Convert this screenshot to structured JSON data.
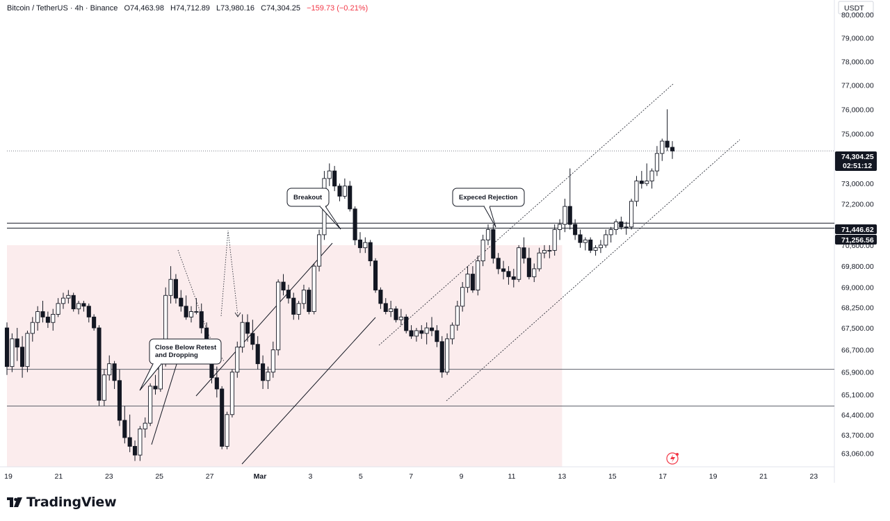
{
  "header": {
    "symbol": "Bitcoin / TetherUS",
    "interval": "4h",
    "exchange": "Binance",
    "open": "O74,463.98",
    "high": "H74,712.89",
    "low": "L73,980.16",
    "close": "C74,304.25",
    "change": "−159.73 (−0.21%)",
    "change_color": "#f23645"
  },
  "axis": {
    "currency": "USDT",
    "price_ticks": [
      "80,000.00",
      "79,000.00",
      "78,000.00",
      "77,000.00",
      "76,000.00",
      "75,000.00",
      "73,000.00",
      "72,200.00",
      "70,600.00",
      "69,800.00",
      "69,000.00",
      "68,250.00",
      "67,500.00",
      "66,700.00",
      "65,900.00",
      "65,100.00",
      "64,400.00",
      "63,700.00",
      "63,060.00"
    ],
    "time_ticks": [
      "19",
      "21",
      "23",
      "25",
      "27",
      "Mar",
      "3",
      "5",
      "7",
      "9",
      "11",
      "13",
      "15",
      "17",
      "19",
      "21",
      "23"
    ]
  },
  "price_tags": {
    "current_price": "74,304.25",
    "countdown": "02:51:12",
    "level_high": "71,446.62",
    "level_low": "71,256.56"
  },
  "annotations": {
    "breakout": "Breakout",
    "expected_rejection": "Expeced Rejection",
    "close_below_line1": "Close Below Retest",
    "close_below_line2": "and Dropping"
  },
  "brand": {
    "name": "TradingView"
  },
  "colors": {
    "candle_body": "#131722",
    "up_body": "#ffffff",
    "zone_fill": "#fbeced",
    "tag_bg": "#131722",
    "accent": "#f23645"
  },
  "chart_data": {
    "type": "candlestick",
    "symbol": "Bitcoin / TetherUS",
    "interval": "4h",
    "x_axis": [
      "19",
      "21",
      "23",
      "25",
      "27",
      "Mar",
      "3",
      "5",
      "7",
      "9",
      "11",
      "13",
      "15",
      "17",
      "19",
      "21",
      "23"
    ],
    "ylim": [
      62600,
      80400
    ],
    "y_scale": "log",
    "horizontal_levels": [
      71446.62,
      71256.56,
      66000,
      64700
    ],
    "current_price": 74304.25,
    "support_zone": {
      "from": "19",
      "to": "13",
      "low": 62600,
      "high": 70600
    },
    "candles": [
      [
        67500,
        67700,
        65800,
        66100
      ],
      [
        66100,
        67300,
        65900,
        67100
      ],
      [
        67100,
        67500,
        66300,
        66800
      ],
      [
        66800,
        67200,
        65700,
        66100
      ],
      [
        66100,
        67400,
        65900,
        67300
      ],
      [
        67300,
        67900,
        67000,
        67700
      ],
      [
        67700,
        68300,
        67400,
        68100
      ],
      [
        68100,
        68500,
        67700,
        67900
      ],
      [
        67900,
        68100,
        67500,
        67700
      ],
      [
        67700,
        68200,
        67400,
        68000
      ],
      [
        68000,
        68600,
        67900,
        68400
      ],
      [
        68400,
        68800,
        68200,
        68600
      ],
      [
        68600,
        68900,
        68400,
        68700
      ],
      [
        68700,
        68800,
        68100,
        68200
      ],
      [
        68200,
        68500,
        68000,
        68400
      ],
      [
        68400,
        68500,
        68100,
        68300
      ],
      [
        68300,
        68400,
        67700,
        67900
      ],
      [
        67900,
        68000,
        67400,
        67500
      ],
      [
        67500,
        67600,
        64700,
        64900
      ],
      [
        64900,
        66000,
        64700,
        65800
      ],
      [
        65800,
        66500,
        65600,
        66200
      ],
      [
        66200,
        66300,
        65300,
        65600
      ],
      [
        65600,
        66000,
        64000,
        64200
      ],
      [
        64200,
        64700,
        63400,
        63600
      ],
      [
        63600,
        64400,
        63100,
        63300
      ],
      [
        63300,
        63500,
        62800,
        63000
      ],
      [
        63000,
        64000,
        62800,
        63900
      ],
      [
        63900,
        64300,
        63600,
        64100
      ],
      [
        64100,
        65500,
        64000,
        65400
      ],
      [
        65400,
        65800,
        65100,
        65300
      ],
      [
        65300,
        66400,
        65200,
        66200
      ],
      [
        66200,
        69000,
        66100,
        68700
      ],
      [
        68700,
        69800,
        68400,
        69300
      ],
      [
        69300,
        69500,
        68400,
        68600
      ],
      [
        68600,
        68900,
        68100,
        68300
      ],
      [
        68300,
        68700,
        67800,
        67900
      ],
      [
        67900,
        68300,
        67700,
        68100
      ],
      [
        68100,
        68600,
        68000,
        68100
      ],
      [
        68100,
        68400,
        67300,
        67500
      ],
      [
        67500,
        67700,
        66300,
        66500
      ],
      [
        66500,
        66800,
        65500,
        65700
      ],
      [
        65700,
        66100,
        65000,
        65300
      ],
      [
        65300,
        65400,
        63200,
        63300
      ],
      [
        63300,
        64500,
        63200,
        64400
      ],
      [
        64400,
        66000,
        64300,
        65900
      ],
      [
        65900,
        67000,
        65700,
        66800
      ],
      [
        66800,
        68000,
        66600,
        67700
      ],
      [
        67700,
        68000,
        67000,
        67300
      ],
      [
        67300,
        67800,
        66700,
        66900
      ],
      [
        66900,
        67200,
        66000,
        66200
      ],
      [
        66200,
        66500,
        65300,
        65600
      ],
      [
        65600,
        66100,
        65300,
        65900
      ],
      [
        65900,
        67000,
        65700,
        66700
      ],
      [
        66700,
        69300,
        66500,
        69200
      ],
      [
        69200,
        69500,
        68700,
        68900
      ],
      [
        68900,
        69100,
        68400,
        68600
      ],
      [
        68600,
        68800,
        67800,
        68000
      ],
      [
        68000,
        68500,
        67800,
        68400
      ],
      [
        68400,
        69100,
        68200,
        68900
      ],
      [
        68900,
        69000,
        68000,
        68100
      ],
      [
        68100,
        69900,
        68000,
        69800
      ],
      [
        69800,
        71200,
        69600,
        71000
      ],
      [
        71000,
        73500,
        70800,
        73200
      ],
      [
        73200,
        73800,
        72900,
        73500
      ],
      [
        73500,
        73700,
        72700,
        72900
      ],
      [
        72900,
        73000,
        72300,
        72500
      ],
      [
        72500,
        73200,
        72400,
        72900
      ],
      [
        72900,
        73100,
        71900,
        72000
      ],
      [
        72000,
        72100,
        70600,
        70800
      ],
      [
        70800,
        71100,
        70300,
        70500
      ],
      [
        70500,
        70900,
        70300,
        70700
      ],
      [
        70700,
        70800,
        69800,
        70000
      ],
      [
        70000,
        70100,
        68800,
        68900
      ],
      [
        68900,
        69000,
        68200,
        68400
      ],
      [
        68400,
        68600,
        68000,
        68100
      ],
      [
        68100,
        68500,
        67900,
        68200
      ],
      [
        68200,
        68300,
        67700,
        67800
      ],
      [
        67800,
        68200,
        67600,
        67900
      ],
      [
        67900,
        68000,
        67300,
        67400
      ],
      [
        67400,
        67600,
        67100,
        67200
      ],
      [
        67200,
        67500,
        67000,
        67400
      ],
      [
        67400,
        67600,
        67100,
        67300
      ],
      [
        67300,
        67700,
        66900,
        67500
      ],
      [
        67500,
        67900,
        67200,
        67400
      ],
      [
        67400,
        67600,
        66800,
        67000
      ],
      [
        67000,
        67200,
        65700,
        65900
      ],
      [
        65900,
        67300,
        65800,
        67100
      ],
      [
        67100,
        67700,
        66900,
        67600
      ],
      [
        67600,
        68500,
        67400,
        68300
      ],
      [
        68300,
        69200,
        68100,
        69000
      ],
      [
        69000,
        69800,
        68800,
        69500
      ],
      [
        69500,
        69800,
        68800,
        68900
      ],
      [
        68900,
        70200,
        68700,
        70000
      ],
      [
        70000,
        71000,
        69800,
        70800
      ],
      [
        70800,
        71400,
        70600,
        71200
      ],
      [
        71200,
        71400,
        69900,
        70100
      ],
      [
        70100,
        70300,
        69500,
        69700
      ],
      [
        69700,
        70000,
        69300,
        69600
      ],
      [
        69600,
        69800,
        69100,
        69400
      ],
      [
        69400,
        69700,
        69000,
        69300
      ],
      [
        69300,
        70600,
        69200,
        70500
      ],
      [
        70500,
        70900,
        69900,
        70100
      ],
      [
        70100,
        70500,
        69300,
        69400
      ],
      [
        69400,
        69900,
        69200,
        69700
      ],
      [
        69700,
        70500,
        69600,
        70300
      ],
      [
        70300,
        70600,
        70100,
        70400
      ],
      [
        70400,
        70600,
        70100,
        70400
      ],
      [
        70400,
        71400,
        70200,
        71200
      ],
      [
        71200,
        71600,
        70800,
        71400
      ],
      [
        71400,
        72400,
        71100,
        72100
      ],
      [
        72100,
        73600,
        71200,
        71400
      ],
      [
        71400,
        71600,
        70800,
        71000
      ],
      [
        71000,
        71200,
        70500,
        70700
      ],
      [
        70700,
        70900,
        70400,
        70800
      ],
      [
        70800,
        70900,
        70300,
        70400
      ],
      [
        70400,
        70600,
        70200,
        70500
      ],
      [
        70500,
        70800,
        70300,
        70600
      ],
      [
        70600,
        71200,
        70500,
        71000
      ],
      [
        71000,
        71300,
        70700,
        71200
      ],
      [
        71200,
        71600,
        71000,
        71500
      ],
      [
        71500,
        71700,
        71200,
        71300
      ],
      [
        71300,
        71500,
        71000,
        71300
      ],
      [
        71300,
        72400,
        71200,
        72300
      ],
      [
        72300,
        73300,
        72100,
        73100
      ],
      [
        73100,
        73500,
        72800,
        73000
      ],
      [
        73000,
        73800,
        72900,
        73100
      ],
      [
        73100,
        73600,
        72800,
        73500
      ],
      [
        73500,
        74500,
        73300,
        74200
      ],
      [
        74200,
        74800,
        73900,
        74700
      ],
      [
        74700,
        76000,
        74300,
        74450
      ],
      [
        74450,
        74700,
        73980,
        74300
      ]
    ],
    "trend_lines": [
      {
        "name": "upper-channel",
        "style": "dotted"
      },
      {
        "name": "lower-channel",
        "style": "dotted"
      }
    ]
  }
}
